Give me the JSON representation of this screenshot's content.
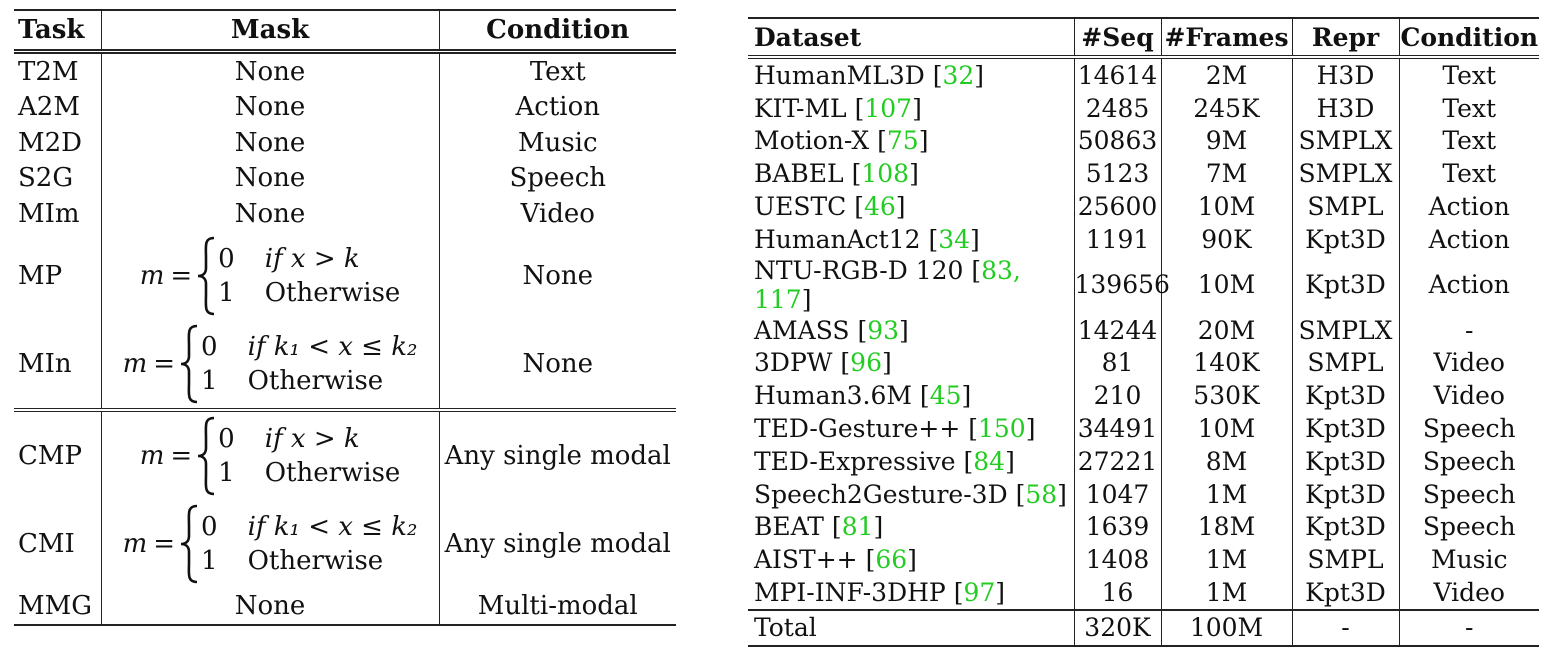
{
  "task_table": {
    "headers": {
      "task": "Task",
      "mask": "Mask",
      "condition": "Condition"
    },
    "rows": [
      {
        "task": "T2M",
        "mask": "None",
        "condition": "Text"
      },
      {
        "task": "A2M",
        "mask": "None",
        "condition": "Action"
      },
      {
        "task": "M2D",
        "mask": "None",
        "condition": "Music"
      },
      {
        "task": "S2G",
        "mask": "None",
        "condition": "Speech"
      },
      {
        "task": "MIm",
        "mask": "None",
        "condition": "Video"
      },
      {
        "task": "MP",
        "condition": "None",
        "formula": {
          "lhs": "m",
          "eq": "=",
          "v1": "0",
          "c1": "if x > k",
          "v2": "1",
          "c2": "Otherwise"
        }
      },
      {
        "task": "MIn",
        "condition": "None",
        "formula": {
          "lhs": "m",
          "eq": "=",
          "v1": "0",
          "c1": "if k₁ < x ≤ k₂",
          "v2": "1",
          "c2": "Otherwise"
        }
      },
      {
        "task": "CMP",
        "condition": "Any single modal",
        "formula": {
          "lhs": "m",
          "eq": "=",
          "v1": "0",
          "c1": "if x > k",
          "v2": "1",
          "c2": "Otherwise"
        }
      },
      {
        "task": "CMI",
        "condition": "Any single modal",
        "formula": {
          "lhs": "m",
          "eq": "=",
          "v1": "0",
          "c1": "if k₁ < x ≤ k₂",
          "v2": "1",
          "c2": "Otherwise"
        }
      },
      {
        "task": "MMG",
        "mask": "None",
        "condition": "Multi-modal"
      }
    ]
  },
  "dataset_table": {
    "headers": {
      "dataset": "Dataset",
      "seq": "#Seq",
      "frames": "#Frames",
      "repr": "Repr",
      "condition": "Condition"
    },
    "ref_color": "#22cc22",
    "rows": [
      {
        "name": "HumanML3D",
        "refs": "32",
        "seq": "14614",
        "frames": "2M",
        "repr": "H3D",
        "condition": "Text"
      },
      {
        "name": "KIT-ML",
        "refs": "107",
        "seq": "2485",
        "frames": "245K",
        "repr": "H3D",
        "condition": "Text"
      },
      {
        "name": "Motion-X",
        "refs": "75",
        "seq": "50863",
        "frames": "9M",
        "repr": "SMPLX",
        "condition": "Text"
      },
      {
        "name": "BABEL",
        "refs": "108",
        "seq": "5123",
        "frames": "7M",
        "repr": "SMPLX",
        "condition": "Text"
      },
      {
        "name": "UESTC",
        "refs": "46",
        "seq": "25600",
        "frames": "10M",
        "repr": "SMPL",
        "condition": "Action"
      },
      {
        "name": "HumanAct12",
        "refs": "34",
        "seq": "1191",
        "frames": "90K",
        "repr": "Kpt3D",
        "condition": "Action"
      },
      {
        "name": "NTU-RGB-D 120",
        "refs": "83, 117",
        "seq": "139656",
        "frames": "10M",
        "repr": "Kpt3D",
        "condition": "Action"
      },
      {
        "name": "AMASS",
        "refs": "93",
        "seq": "14244",
        "frames": "20M",
        "repr": "SMPLX",
        "condition": "-"
      },
      {
        "name": "3DPW",
        "refs": "96",
        "seq": "81",
        "frames": "140K",
        "repr": "SMPL",
        "condition": "Video"
      },
      {
        "name": "Human3.6M",
        "refs": "45",
        "seq": "210",
        "frames": "530K",
        "repr": "Kpt3D",
        "condition": "Video"
      },
      {
        "name": "TED-Gesture++",
        "refs": "150",
        "seq": "34491",
        "frames": "10M",
        "repr": "Kpt3D",
        "condition": "Speech"
      },
      {
        "name": "TED-Expressive",
        "refs": "84",
        "seq": "27221",
        "frames": "8M",
        "repr": "Kpt3D",
        "condition": "Speech"
      },
      {
        "name": "Speech2Gesture-3D",
        "refs": "58",
        "seq": "1047",
        "frames": "1M",
        "repr": "Kpt3D",
        "condition": "Speech"
      },
      {
        "name": "BEAT",
        "refs": "81",
        "seq": "1639",
        "frames": "18M",
        "repr": "Kpt3D",
        "condition": "Speech"
      },
      {
        "name": "AIST++",
        "refs": "66",
        "seq": "1408",
        "frames": "1M",
        "repr": "SMPL",
        "condition": "Music"
      },
      {
        "name": "MPI-INF-3DHP",
        "refs": "97",
        "seq": "16",
        "frames": "1M",
        "repr": "Kpt3D",
        "condition": "Video"
      }
    ],
    "total": {
      "name": "Total",
      "seq": "320K",
      "frames": "100M",
      "repr": "-",
      "condition": "-"
    }
  }
}
